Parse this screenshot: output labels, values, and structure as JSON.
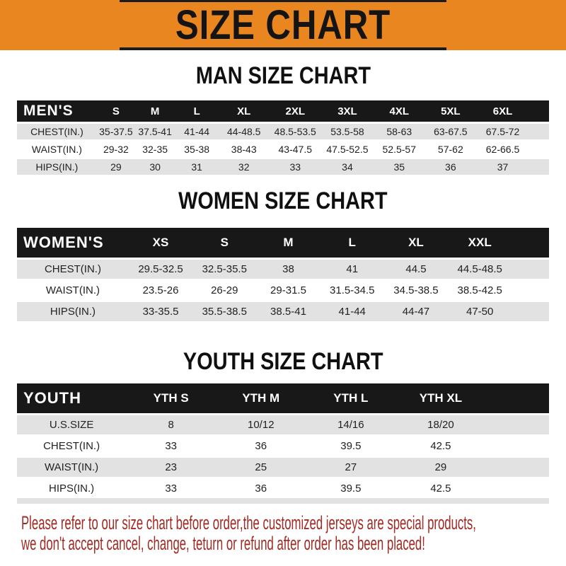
{
  "banner": {
    "title": "SIZE CHART",
    "bg_color": "#EA861F",
    "text_color": "#141414"
  },
  "sections": [
    {
      "heading": "MAN SIZE CHART",
      "table": {
        "header_label": "MEN'S",
        "columns": [
          "S",
          "M",
          "L",
          "XL",
          "2XL",
          "3XL",
          "4XL",
          "5XL",
          "6XL"
        ],
        "rows": [
          {
            "label": "CHEST(IN.)",
            "values": [
              "35-37.5",
              "37.5-41",
              "41-44",
              "44-48.5",
              "48.5-53.5",
              "53.5-58",
              "58-63",
              "63-67.5",
              "67.5-72"
            ]
          },
          {
            "label": "WAIST(IN.)",
            "values": [
              "29-32",
              "32-35",
              "35-38",
              "38-43",
              "43-47.5",
              "47.5-52.5",
              "52.5-57",
              "57-62",
              "62-66.5"
            ]
          },
          {
            "label": "HIPS(IN.)",
            "values": [
              "29",
              "30",
              "31",
              "32",
              "33",
              "34",
              "35",
              "36",
              "37"
            ]
          }
        ]
      }
    },
    {
      "heading": "WOMEN SIZE CHART",
      "table": {
        "header_label": "WOMEN'S",
        "columns": [
          "XS",
          "S",
          "M",
          "L",
          "XL",
          "XXL"
        ],
        "rows": [
          {
            "label": "CHEST(IN.)",
            "values": [
              "29.5-32.5",
              "32.5-35.5",
              "38",
              "41",
              "44.5",
              "44.5-48.5"
            ]
          },
          {
            "label": "WAIST(IN.)",
            "values": [
              "23.5-26",
              "26-29",
              "29-31.5",
              "31.5-34.5",
              "34.5-38.5",
              "38.5-42.5"
            ]
          },
          {
            "label": "HIPS(IN.)",
            "values": [
              "33-35.5",
              "35.5-38.5",
              "38.5-41",
              "41-44",
              "44-47",
              "47-50"
            ]
          }
        ]
      }
    },
    {
      "heading": "YOUTH SIZE CHART",
      "table": {
        "header_label": "YOUTH",
        "columns": [
          "YTH S",
          "YTH M",
          "YTH L",
          "YTH XL"
        ],
        "rows": [
          {
            "label": "U.S.SIZE",
            "values": [
              "8",
              "10/12",
              "14/16",
              "18/20"
            ]
          },
          {
            "label": "CHEST(IN.)",
            "values": [
              "33",
              "36",
              "39.5",
              "42.5"
            ]
          },
          {
            "label": "WAIST(IN.)",
            "values": [
              "23",
              "25",
              "27",
              "29"
            ]
          },
          {
            "label": "HIPS(IN.)",
            "values": [
              "33",
              "36",
              "39.5",
              "42.5"
            ]
          }
        ]
      }
    }
  ],
  "footer": {
    "line1": "Please refer to our size chart before order,the customized jerseys are special products,",
    "line2": "we don't accept cancel, change, teturn or refund after order has been placed!",
    "text_color": "#A02B24"
  },
  "colors": {
    "banner_orange": "#EA861F",
    "header_bar_black": "#181818",
    "row_gray": "#E2E2E2",
    "footer_red": "#A02B24"
  }
}
